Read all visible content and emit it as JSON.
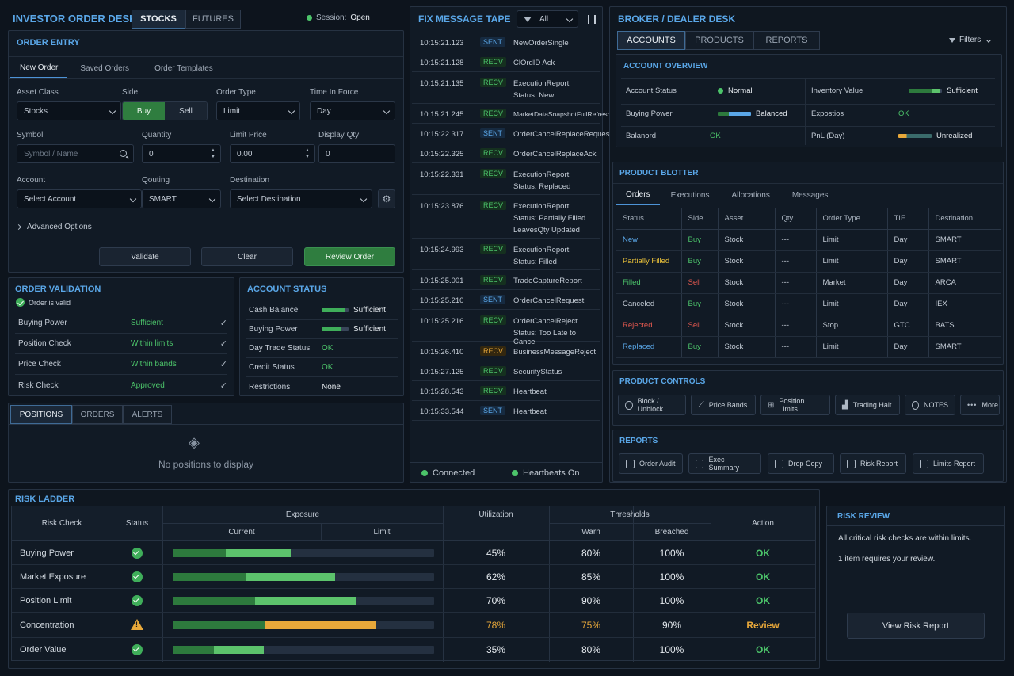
{
  "header": {
    "title": "INVESTOR ORDER DESK",
    "tabs": [
      "STOCKS",
      "FUTURES"
    ],
    "session_label": "Session:",
    "session_value": "Open"
  },
  "order_entry": {
    "title": "ORDER ENTRY",
    "tabs": [
      "New Order",
      "Saved Orders",
      "Order Templates"
    ],
    "asset_class": {
      "label": "Asset Class",
      "value": "Stocks"
    },
    "side": {
      "label": "Side",
      "buy": "Buy",
      "sell": "Sell"
    },
    "order_type": {
      "label": "Order Type",
      "value": "Limit"
    },
    "tif": {
      "label": "Time In Force",
      "value": "Day"
    },
    "symbol": {
      "label": "Symbol",
      "placeholder": "Symbol / Name"
    },
    "quantity": {
      "label": "Quantity",
      "value": "0"
    },
    "limit_price": {
      "label": "Limit Price",
      "value": "0.00"
    },
    "display_qty": {
      "label": "Display Qty",
      "value": "0"
    },
    "account": {
      "label": "Account",
      "value": "Select Account"
    },
    "qouting": {
      "label": "Qouting",
      "value": "SMART"
    },
    "destination": {
      "label": "Destination",
      "value": "Select Destination"
    },
    "advanced": "Advanced Options",
    "validate": "Validate",
    "clear": "Clear",
    "review": "Review Order"
  },
  "validation": {
    "title": "ORDER VALIDATION",
    "valid": "Order is valid",
    "rows": [
      {
        "label": "Buying Power",
        "value": "Sufficient"
      },
      {
        "label": "Position Check",
        "value": "Within limits"
      },
      {
        "label": "Price Check",
        "value": "Within bands"
      },
      {
        "label": "Risk Check",
        "value": "Approved"
      }
    ]
  },
  "account_status": {
    "title": "ACCOUNT STATUS",
    "rows": [
      {
        "label": "Cash Balance",
        "value": "Sufficient",
        "bar": 0.85
      },
      {
        "label": "Buying Power",
        "value": "Sufficient",
        "bar": 0.7
      },
      {
        "label": "Day Trade Status",
        "value": "OK"
      },
      {
        "label": "Credit Status",
        "value": "OK"
      },
      {
        "label": "Restrictions",
        "value": "None"
      }
    ]
  },
  "positions": {
    "tabs": [
      "POSITIONS",
      "ORDERS",
      "ALERTS"
    ],
    "empty": "No positions to display"
  },
  "fix": {
    "title": "FIX MESSAGE TAPE",
    "filter": "All",
    "messages": [
      {
        "time": "10:15:21.123",
        "dir": "SENT",
        "msg": "NewOrderSingle",
        "sub": ""
      },
      {
        "time": "10:15:21.128",
        "dir": "RECV",
        "msg": "ClOrdID Ack",
        "sub": ""
      },
      {
        "time": "10:15:21.135",
        "dir": "RECV",
        "msg": "ExecutionReport",
        "sub": "Status: New"
      },
      {
        "time": "10:15:21.245",
        "dir": "RECV",
        "msg": "MarketDataSnapshotFullRefresh",
        "sub": ""
      },
      {
        "time": "10:15:22.317",
        "dir": "SENT",
        "msg": "OrderCancelReplaceRequest",
        "sub": ""
      },
      {
        "time": "10:15:22.325",
        "dir": "RECV",
        "msg": "OrderCancelReplaceAck",
        "sub": ""
      },
      {
        "time": "10:15:22.331",
        "dir": "RECV",
        "msg": "ExecutionReport",
        "sub": "Status: Replaced"
      },
      {
        "time": "10:15:23.876",
        "dir": "RECV",
        "msg": "ExecutionReport",
        "sub": "Status: Partially Filled",
        "sub2": "LeavesQty Updated"
      },
      {
        "time": "10:15:24.993",
        "dir": "RECV",
        "msg": "ExecutionReport",
        "sub": "Status: Filled"
      },
      {
        "time": "10:15:25.001",
        "dir": "RECV",
        "msg": "TradeCaptureReport",
        "sub": ""
      },
      {
        "time": "10:15:25.210",
        "dir": "SENT",
        "msg": "OrderCancelRequest",
        "sub": ""
      },
      {
        "time": "10:15:25.216",
        "dir": "RECV",
        "msg": "OrderCancelReject",
        "sub": "Status: Too Late to Cancel"
      },
      {
        "time": "10:15:26.410",
        "dir": "RECV",
        "msg": "BusinessMessageReject",
        "sub": "",
        "warn": true
      },
      {
        "time": "10:15:27.125",
        "dir": "RECV",
        "msg": "SecurityStatus",
        "sub": ""
      },
      {
        "time": "10:15:28.543",
        "dir": "RECV",
        "msg": "Heartbeat",
        "sub": ""
      },
      {
        "time": "10:15:33.544",
        "dir": "SENT",
        "msg": "Heartbeat",
        "sub": ""
      }
    ],
    "connected": "Connected",
    "heartbeats": "Heartbeats On"
  },
  "broker": {
    "title": "BROKER / DEALER DESK",
    "tabs": [
      "ACCOUNTS",
      "PRODUCTS",
      "REPORTS"
    ],
    "filters": "Filters",
    "overview_title": "ACCOUNT OVERVIEW",
    "overview": {
      "account_status_label": "Account Status",
      "account_status_value": "Normal",
      "inventory_label": "Inventory Value",
      "inventory_value": "Sufficient",
      "buying_power_label": "Buying Power",
      "buying_power_value": "Balanced",
      "expostios_label": "Expostios",
      "expostios_value": "OK",
      "balanord_label": "Balanord",
      "balanord_value": "OK",
      "pnl_label": "PnL (Day)",
      "pnl_value": "Unrealized"
    }
  },
  "blotter": {
    "title": "PRODUCT BLOTTER",
    "tabs": [
      "Orders",
      "Executions",
      "Allocations",
      "Messages"
    ],
    "columns": [
      "Status",
      "Side",
      "Asset",
      "Qty",
      "Order Type",
      "TIF",
      "Destination"
    ],
    "rows": [
      {
        "status": "New",
        "color": "#5aa7e8",
        "side": "Buy",
        "asset": "Stock",
        "qty": "---",
        "type": "Limit",
        "tif": "Day",
        "dest": "SMART"
      },
      {
        "status": "Partially Filled",
        "color": "#e8c03a",
        "side": "Buy",
        "asset": "Stock",
        "qty": "---",
        "type": "Limit",
        "tif": "Day",
        "dest": "SMART"
      },
      {
        "status": "Filled",
        "color": "#4cc46a",
        "side": "Sell",
        "asset": "Stock",
        "qty": "---",
        "type": "Market",
        "tif": "Day",
        "dest": "ARCA"
      },
      {
        "status": "Canceled",
        "color": "#c3cbd5",
        "side": "Buy",
        "asset": "Stock",
        "qty": "---",
        "type": "Limit",
        "tif": "Day",
        "dest": "IEX"
      },
      {
        "status": "Rejected",
        "color": "#e2584f",
        "side": "Sell",
        "asset": "Stock",
        "qty": "---",
        "type": "Stop",
        "tif": "GTC",
        "dest": "BATS"
      },
      {
        "status": "Replaced",
        "color": "#5aa7e8",
        "side": "Buy",
        "asset": "Stock",
        "qty": "---",
        "type": "Limit",
        "tif": "Day",
        "dest": "SMART"
      }
    ]
  },
  "controls": {
    "title": "PRODUCT CONTROLS",
    "items": [
      "Block / Unblock",
      "Price Bands",
      "Position Limits",
      "Trading Halt",
      "NOTES",
      "More"
    ]
  },
  "reports": {
    "title": "REPORTS",
    "items": [
      "Order Audit",
      "Exec Summary",
      "Drop Copy",
      "Risk Report",
      "Limits Report"
    ]
  },
  "risk_ladder": {
    "title": "RISK LADDER",
    "headers": {
      "check": "Risk Check",
      "status": "Status",
      "exposure": "Exposure",
      "current": "Current",
      "limit": "Limit",
      "utilization": "Utilization",
      "thresholds": "Thresholds",
      "warn": "Warn",
      "breached": "Breached",
      "action": "Action"
    },
    "rows": [
      {
        "check": "Buying Power",
        "status": "ok",
        "util": "45%",
        "current": 0.45,
        "warn": "80%",
        "breached": "100%",
        "action": "OK"
      },
      {
        "check": "Market Exposure",
        "status": "ok",
        "util": "62%",
        "current": 0.62,
        "warn": "85%",
        "breached": "100%",
        "action": "OK"
      },
      {
        "check": "Position Limit",
        "status": "ok",
        "util": "70%",
        "current": 0.7,
        "warn": "90%",
        "breached": "100%",
        "action": "OK"
      },
      {
        "check": "Concentration",
        "status": "warn",
        "util": "78%",
        "current": 0.78,
        "warn": "75%",
        "breached": "90%",
        "action": "Review"
      },
      {
        "check": "Order Value",
        "status": "ok",
        "util": "35%",
        "current": 0.35,
        "warn": "80%",
        "breached": "100%",
        "action": "OK"
      }
    ]
  },
  "risk_review": {
    "title": "RISK REVIEW",
    "line1": "All critical risk checks are within limits.",
    "line2": "1 item requires your review.",
    "button": "View Risk Report"
  }
}
